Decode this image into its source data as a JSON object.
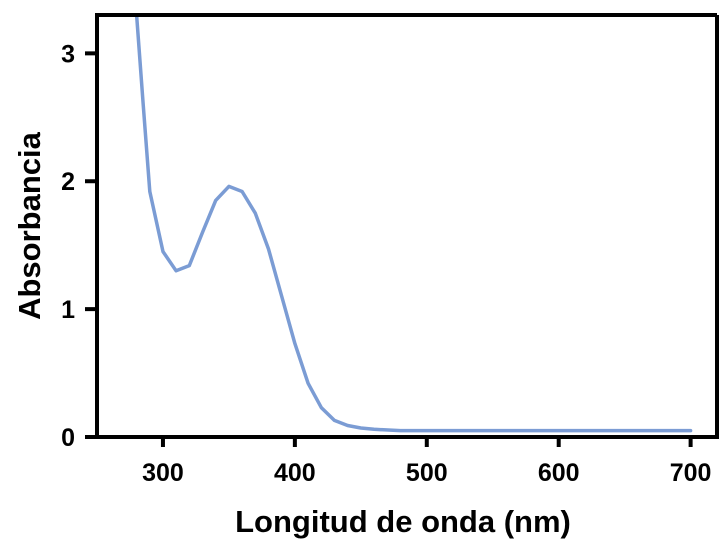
{
  "chart_data": {
    "type": "line",
    "title": "",
    "xlabel": "Longitud de onda (nm)",
    "ylabel": "Absorbancia",
    "xlim": [
      250,
      720
    ],
    "ylim": [
      0,
      3.3
    ],
    "xticks": [
      300,
      400,
      500,
      600,
      700
    ],
    "xtick_labels": [
      "300",
      "400",
      "500",
      "600",
      "700"
    ],
    "yticks": [
      0,
      1,
      2,
      3
    ],
    "ytick_labels": [
      "0",
      "1",
      "2",
      "3"
    ],
    "grid": false,
    "legend": "none",
    "series": [
      {
        "color": "#7b9cd4",
        "x": [
          280,
          285,
          290,
          300,
          310,
          320,
          330,
          340,
          350,
          360,
          370,
          380,
          390,
          400,
          410,
          420,
          430,
          440,
          450,
          460,
          480,
          500,
          550,
          600,
          650,
          700
        ],
        "y": [
          3.3,
          2.6,
          1.92,
          1.45,
          1.3,
          1.34,
          1.6,
          1.85,
          1.96,
          1.92,
          1.75,
          1.47,
          1.1,
          0.73,
          0.42,
          0.23,
          0.13,
          0.09,
          0.07,
          0.06,
          0.05,
          0.05,
          0.05,
          0.05,
          0.05,
          0.05
        ]
      }
    ]
  }
}
